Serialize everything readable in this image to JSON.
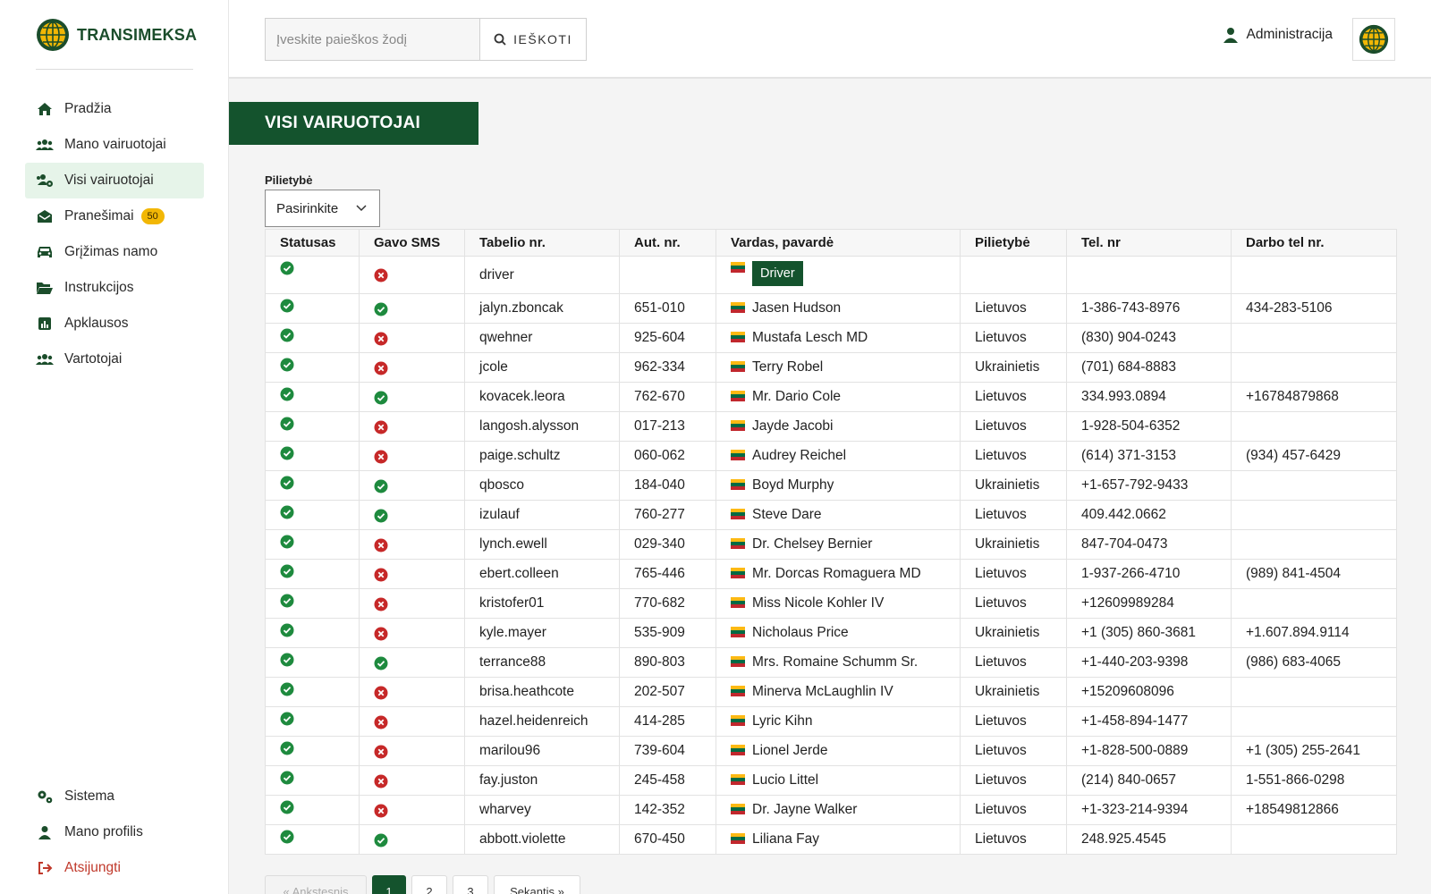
{
  "brand": {
    "name": "TRANSIMEKSA"
  },
  "sidebar": {
    "items": [
      {
        "label": "Pradžia",
        "icon": "home-icon"
      },
      {
        "label": "Mano vairuotojai",
        "icon": "users-icon"
      },
      {
        "label": "Visi vairuotojai",
        "icon": "users-cog-icon"
      },
      {
        "label": "Pranešimai",
        "icon": "envelope-open-icon",
        "badge": "50"
      },
      {
        "label": "Grįžimas namo",
        "icon": "car-icon"
      },
      {
        "label": "Instrukcijos",
        "icon": "folder-open-icon"
      },
      {
        "label": "Apklausos",
        "icon": "chart-icon"
      },
      {
        "label": "Vartotojai",
        "icon": "users-icon"
      }
    ],
    "bottom": [
      {
        "label": "Sistema",
        "icon": "cogs-icon"
      },
      {
        "label": "Mano profilis",
        "icon": "user-icon"
      },
      {
        "label": "Atsijungti",
        "icon": "sign-out-icon"
      }
    ]
  },
  "header": {
    "search_placeholder": "Įveskite paieškos žodį",
    "search_button": "IEŠKOTI",
    "admin_label": "Administracija"
  },
  "main": {
    "title": "VISI VAIRUOTOJAI",
    "filter_label": "Pilietybė",
    "filter_value": "Pasirinkite"
  },
  "table": {
    "columns": [
      "Statusas",
      "Gavo SMS",
      "Tabelio nr.",
      "Aut. nr.",
      "Vardas, pavardė",
      "Pilietybė",
      "Tel. nr",
      "Darbo tel nr."
    ],
    "rows": [
      {
        "status": "ok",
        "sms": "no",
        "tabelio": "driver",
        "aut": "",
        "name": "Driver",
        "pilietybe": "",
        "tel": "",
        "darbo": ""
      },
      {
        "status": "ok",
        "sms": "ok",
        "tabelio": "jalyn.zboncak",
        "aut": "651-010",
        "name": "Jasen Hudson",
        "pilietybe": "Lietuvos",
        "tel": "1-386-743-8976",
        "darbo": "434-283-5106"
      },
      {
        "status": "ok",
        "sms": "no",
        "tabelio": "qwehner",
        "aut": "925-604",
        "name": "Mustafa Lesch MD",
        "pilietybe": "Lietuvos",
        "tel": "(830) 904-0243",
        "darbo": ""
      },
      {
        "status": "ok",
        "sms": "no",
        "tabelio": "jcole",
        "aut": "962-334",
        "name": "Terry Robel",
        "pilietybe": "Ukrainietis",
        "tel": "(701) 684-8883",
        "darbo": ""
      },
      {
        "status": "ok",
        "sms": "ok",
        "tabelio": "kovacek.leora",
        "aut": "762-670",
        "name": "Mr. Dario Cole",
        "pilietybe": "Lietuvos",
        "tel": "334.993.0894",
        "darbo": "+16784879868"
      },
      {
        "status": "ok",
        "sms": "no",
        "tabelio": "langosh.alysson",
        "aut": "017-213",
        "name": "Jayde Jacobi",
        "pilietybe": "Lietuvos",
        "tel": "1-928-504-6352",
        "darbo": ""
      },
      {
        "status": "ok",
        "sms": "no",
        "tabelio": "paige.schultz",
        "aut": "060-062",
        "name": "Audrey Reichel",
        "pilietybe": "Lietuvos",
        "tel": "(614) 371-3153",
        "darbo": "(934) 457-6429"
      },
      {
        "status": "ok",
        "sms": "ok",
        "tabelio": "qbosco",
        "aut": "184-040",
        "name": "Boyd Murphy",
        "pilietybe": "Ukrainietis",
        "tel": "+1-657-792-9433",
        "darbo": ""
      },
      {
        "status": "ok",
        "sms": "ok",
        "tabelio": "izulauf",
        "aut": "760-277",
        "name": "Steve Dare",
        "pilietybe": "Lietuvos",
        "tel": "409.442.0662",
        "darbo": ""
      },
      {
        "status": "ok",
        "sms": "no",
        "tabelio": "lynch.ewell",
        "aut": "029-340",
        "name": "Dr. Chelsey Bernier",
        "pilietybe": "Ukrainietis",
        "tel": "847-704-0473",
        "darbo": ""
      },
      {
        "status": "ok",
        "sms": "no",
        "tabelio": "ebert.colleen",
        "aut": "765-446",
        "name": "Mr. Dorcas Romaguera MD",
        "pilietybe": "Lietuvos",
        "tel": "1-937-266-4710",
        "darbo": "(989) 841-4504"
      },
      {
        "status": "ok",
        "sms": "no",
        "tabelio": "kristofer01",
        "aut": "770-682",
        "name": "Miss Nicole Kohler IV",
        "pilietybe": "Lietuvos",
        "tel": "+12609989284",
        "darbo": ""
      },
      {
        "status": "ok",
        "sms": "no",
        "tabelio": "kyle.mayer",
        "aut": "535-909",
        "name": "Nicholaus Price",
        "pilietybe": "Ukrainietis",
        "tel": "+1 (305) 860-3681",
        "darbo": "+1.607.894.9114"
      },
      {
        "status": "ok",
        "sms": "ok",
        "tabelio": "terrance88",
        "aut": "890-803",
        "name": "Mrs. Romaine Schumm Sr.",
        "pilietybe": "Lietuvos",
        "tel": "+1-440-203-9398",
        "darbo": "(986) 683-4065"
      },
      {
        "status": "ok",
        "sms": "no",
        "tabelio": "brisa.heathcote",
        "aut": "202-507",
        "name": "Minerva McLaughlin IV",
        "pilietybe": "Ukrainietis",
        "tel": "+15209608096",
        "darbo": ""
      },
      {
        "status": "ok",
        "sms": "no",
        "tabelio": "hazel.heidenreich",
        "aut": "414-285",
        "name": "Lyric Kihn",
        "pilietybe": "Lietuvos",
        "tel": "+1-458-894-1477",
        "darbo": ""
      },
      {
        "status": "ok",
        "sms": "no",
        "tabelio": "marilou96",
        "aut": "739-604",
        "name": "Lionel Jerde",
        "pilietybe": "Lietuvos",
        "tel": "+1-828-500-0889",
        "darbo": "+1 (305) 255-2641"
      },
      {
        "status": "ok",
        "sms": "no",
        "tabelio": "fay.juston",
        "aut": "245-458",
        "name": "Lucio Littel",
        "pilietybe": "Lietuvos",
        "tel": "(214) 840-0657",
        "darbo": "1-551-866-0298"
      },
      {
        "status": "ok",
        "sms": "no",
        "tabelio": "wharvey",
        "aut": "142-352",
        "name": "Dr. Jayne Walker",
        "pilietybe": "Lietuvos",
        "tel": "+1-323-214-9394",
        "darbo": "+18549812866"
      },
      {
        "status": "ok",
        "sms": "ok",
        "tabelio": "abbott.violette",
        "aut": "670-450",
        "name": "Liliana Fay",
        "pilietybe": "Lietuvos",
        "tel": "248.925.4545",
        "darbo": ""
      }
    ]
  },
  "pagination": {
    "prev": "« Ankstesnis",
    "pages": [
      "1",
      "2",
      "3"
    ],
    "current": "1",
    "next": "Sekantis »"
  },
  "colors": {
    "brand_green": "#14532d",
    "ok_green": "#1e8a3e",
    "error_red": "#c62828",
    "badge_yellow": "#f2b705"
  }
}
